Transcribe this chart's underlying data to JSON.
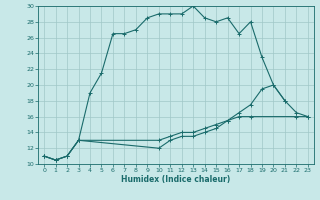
{
  "xlabel": "Humidex (Indice chaleur)",
  "bg_color": "#c8e8e8",
  "grid_color": "#a0c8c8",
  "line_color": "#1a6b6b",
  "xlim": [
    -0.5,
    23.5
  ],
  "ylim": [
    10,
    30
  ],
  "xticks": [
    0,
    1,
    2,
    3,
    4,
    5,
    6,
    7,
    8,
    9,
    10,
    11,
    12,
    13,
    14,
    15,
    16,
    17,
    18,
    19,
    20,
    21,
    22,
    23
  ],
  "yticks": [
    10,
    12,
    14,
    16,
    18,
    20,
    22,
    24,
    26,
    28,
    30
  ],
  "line1_x": [
    0,
    1,
    2,
    3,
    4,
    5,
    6,
    7,
    8,
    9,
    10,
    11,
    12,
    13,
    14,
    15,
    16,
    17,
    18,
    19,
    20,
    21
  ],
  "line1_y": [
    11,
    10.5,
    11,
    13,
    19,
    21.5,
    26.5,
    26.5,
    27,
    28.5,
    29,
    29,
    29,
    30,
    28.5,
    28,
    28.5,
    26.5,
    28,
    23.5,
    20,
    18
  ],
  "line2_x": [
    0,
    1,
    2,
    3,
    10,
    11,
    12,
    13,
    14,
    15,
    16,
    17,
    18,
    22,
    23
  ],
  "line2_y": [
    11,
    10.5,
    11,
    13,
    13,
    13.5,
    14,
    14,
    14.5,
    15,
    15.5,
    16,
    16,
    16,
    16
  ],
  "line3_x": [
    0,
    1,
    2,
    3,
    10,
    11,
    12,
    13,
    14,
    15,
    16,
    17,
    18,
    19,
    20,
    21,
    22,
    23
  ],
  "line3_y": [
    11,
    10.5,
    11,
    13,
    12,
    13,
    13.5,
    13.5,
    14,
    14.5,
    15.5,
    16.5,
    17.5,
    19.5,
    20,
    18,
    16.5,
    16
  ]
}
